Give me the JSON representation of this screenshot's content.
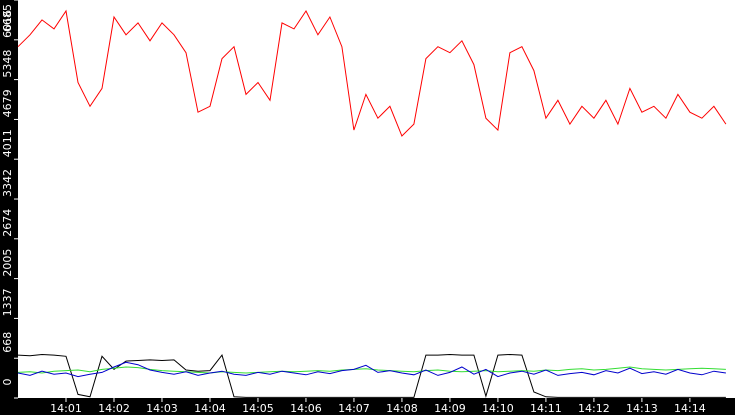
{
  "chart_data": {
    "type": "line",
    "x": [
      0,
      0.25,
      0.5,
      0.75,
      1,
      1.25,
      1.5,
      1.75,
      2,
      2.25,
      2.5,
      2.75,
      3,
      3.25,
      3.5,
      3.75,
      4,
      4.25,
      4.5,
      4.75,
      5,
      5.25,
      5.5,
      5.75,
      6,
      6.25,
      6.5,
      6.75,
      7,
      7.25,
      7.5,
      7.75,
      8,
      8.25,
      8.5,
      8.75,
      9,
      9.25,
      9.5,
      9.75,
      10,
      10.25,
      10.5,
      10.75,
      11,
      11.25,
      11.5,
      11.75,
      12,
      12.25,
      12.5,
      12.75,
      13,
      13.25,
      13.5,
      13.75,
      14,
      14.25,
      14.5,
      14.75
    ],
    "series": [
      {
        "color": "#ff0000",
        "values": [
          5900,
          6100,
          6350,
          6200,
          6500,
          5300,
          4900,
          5200,
          6400,
          6100,
          6300,
          6000,
          6300,
          6100,
          5800,
          4800,
          4900,
          5700,
          5900,
          5100,
          5300,
          5000,
          6300,
          6200,
          6500,
          6100,
          6400,
          5900,
          4500,
          5100,
          4700,
          4900,
          4400,
          4600,
          5700,
          5900,
          5800,
          6000,
          5600,
          4700,
          4500,
          5800,
          5900,
          5500,
          4700,
          5000,
          4600,
          4900,
          4700,
          5000,
          4600,
          5200,
          4800,
          4900,
          4700,
          5100,
          4800,
          4700,
          4900,
          4600
        ]
      },
      {
        "color": "#000000",
        "values": [
          720,
          710,
          730,
          720,
          700,
          60,
          20,
          700,
          480,
          620,
          630,
          640,
          630,
          640,
          470,
          450,
          460,
          720,
          20,
          10,
          10,
          10,
          10,
          10,
          10,
          10,
          10,
          10,
          10,
          10,
          10,
          10,
          10,
          10,
          720,
          720,
          730,
          720,
          720,
          30,
          720,
          730,
          720,
          100,
          20,
          10,
          10,
          10,
          10,
          10,
          10,
          10,
          10,
          10,
          10,
          10,
          10,
          10,
          10,
          10
        ]
      },
      {
        "color": "#33dd33",
        "values": [
          430,
          440,
          420,
          450,
          460,
          470,
          440,
          480,
          500,
          520,
          510,
          480,
          460,
          450,
          440,
          430,
          420,
          440,
          430,
          420,
          430,
          440,
          450,
          440,
          450,
          460,
          450,
          470,
          480,
          490,
          470,
          460,
          450,
          440,
          460,
          470,
          450,
          440,
          450,
          460,
          440,
          450,
          460,
          450,
          470,
          460,
          480,
          490,
          470,
          480,
          500,
          520,
          490,
          480,
          470,
          480,
          490,
          500,
          490,
          480
        ]
      },
      {
        "color": "#0000cc",
        "values": [
          420,
          380,
          450,
          400,
          420,
          360,
          400,
          430,
          520,
          600,
          560,
          470,
          430,
          400,
          440,
          380,
          420,
          450,
          400,
          380,
          430,
          400,
          450,
          420,
          390,
          440,
          410,
          460,
          480,
          550,
          430,
          460,
          420,
          390,
          470,
          380,
          430,
          520,
          400,
          480,
          360,
          420,
          450,
          400,
          470,
          380,
          410,
          430,
          390,
          460,
          420,
          500,
          410,
          440,
          400,
          480,
          420,
          390,
          450,
          420
        ]
      }
    ],
    "xlim": [
      0,
      14.94
    ],
    "xticks": [
      {
        "value": 1,
        "label": "14:01"
      },
      {
        "value": 2,
        "label": "14:02"
      },
      {
        "value": 3,
        "label": "14:03"
      },
      {
        "value": 4,
        "label": "14:04"
      },
      {
        "value": 5,
        "label": "14:05"
      },
      {
        "value": 6,
        "label": "14:06"
      },
      {
        "value": 7,
        "label": "14:07"
      },
      {
        "value": 8,
        "label": "14:08"
      },
      {
        "value": 9,
        "label": "14:09"
      },
      {
        "value": 10,
        "label": "14:10"
      },
      {
        "value": 11,
        "label": "14:11"
      },
      {
        "value": 12,
        "label": "14:12"
      },
      {
        "value": 13,
        "label": "14:13"
      },
      {
        "value": 14,
        "label": "14:14"
      }
    ],
    "ylim": [
      0,
      6685
    ],
    "yticks": [
      0,
      668,
      1337,
      2005,
      2674,
      3342,
      4011,
      4679,
      5348,
      6016,
      6685
    ]
  }
}
